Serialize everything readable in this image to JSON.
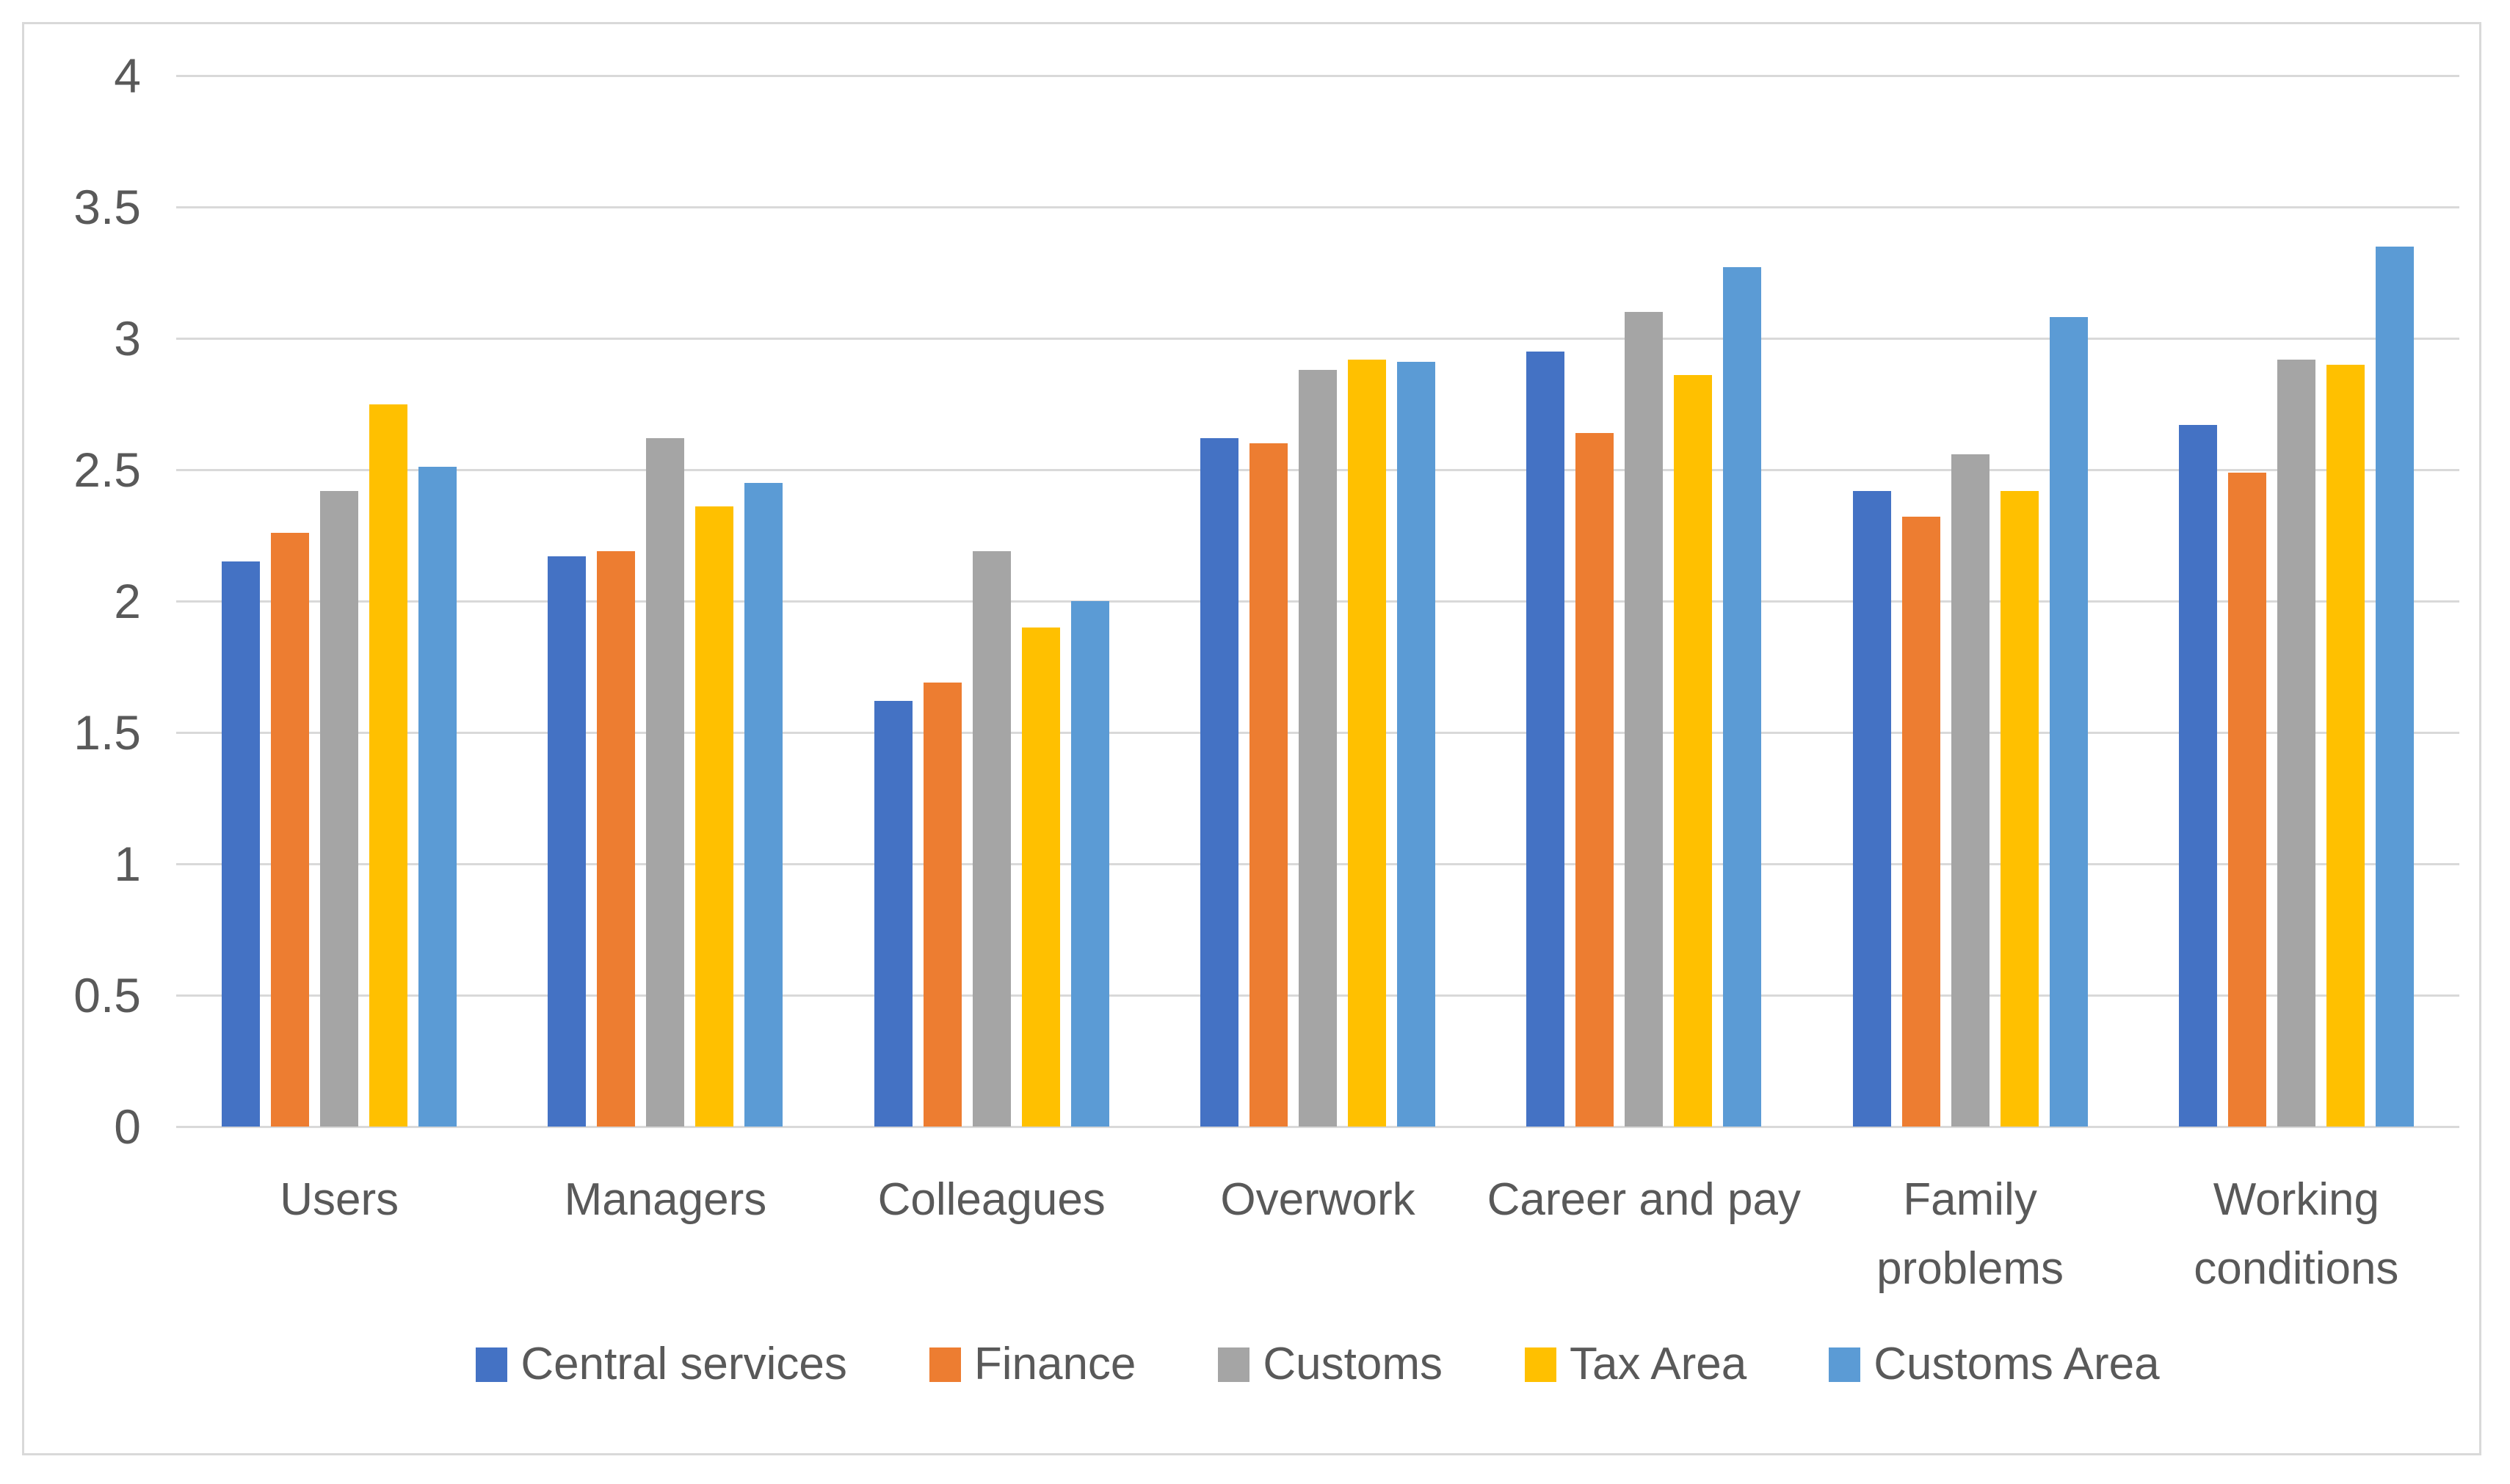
{
  "chart_data": {
    "type": "bar",
    "title": "",
    "categories": [
      "Users",
      "Managers",
      "Colleagues",
      "Overwork",
      "Career and pay",
      "Family\nproblems",
      "Working\nconditions"
    ],
    "series": [
      {
        "name": "Central services",
        "color": "#4472C4",
        "values": [
          2.15,
          2.17,
          1.62,
          2.62,
          2.95,
          2.42,
          2.67
        ]
      },
      {
        "name": "Finance",
        "color": "#ED7D31",
        "values": [
          2.26,
          2.19,
          1.69,
          2.6,
          2.64,
          2.32,
          2.49
        ]
      },
      {
        "name": "Customs",
        "color": "#A5A5A5",
        "values": [
          2.42,
          2.62,
          2.19,
          2.88,
          3.1,
          2.56,
          2.92
        ]
      },
      {
        "name": "Tax Area",
        "color": "#FFC000",
        "values": [
          2.75,
          2.36,
          1.9,
          2.92,
          2.86,
          2.42,
          2.9
        ]
      },
      {
        "name": "Customs Area",
        "color": "#5B9BD5",
        "values": [
          2.51,
          2.45,
          2.0,
          2.91,
          3.27,
          3.08,
          3.35
        ]
      }
    ],
    "xlabel": "",
    "ylabel": "",
    "ylim": [
      0,
      4
    ],
    "ytick_step": 0.5,
    "ytick_labels": [
      "0",
      "0.5",
      "1",
      "1.5",
      "2",
      "2.5",
      "3",
      "3.5",
      "4"
    ],
    "grid": "horizontal",
    "gridline_color": "#D9D9D9",
    "frame_border_color": "#D9D9D9",
    "axis_text_color": "#595959",
    "background_color": "#FFFFFF",
    "legend_position": "bottom",
    "legend_entries": [
      "Central services",
      "Finance",
      "Customs",
      "Tax Area",
      "Customs Area"
    ]
  }
}
